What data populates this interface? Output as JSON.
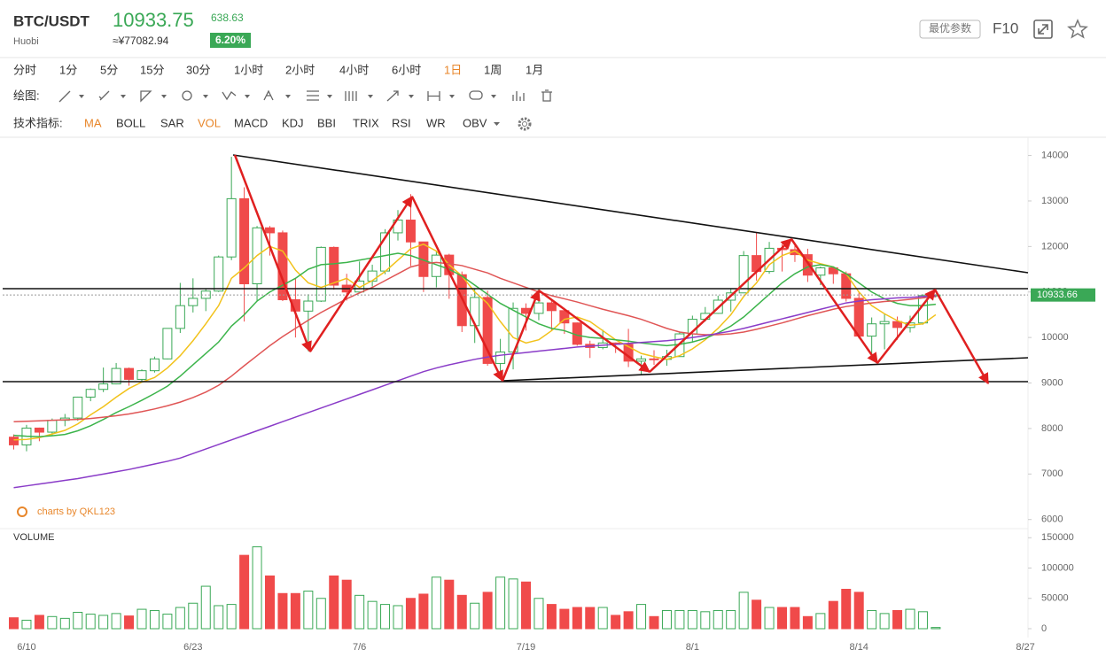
{
  "header": {
    "symbol": "BTC/USDT",
    "exchange": "Huobi",
    "price": 10933.75,
    "cny": "≈¥77082.94",
    "change": 638.63,
    "change_pct": "6.20%",
    "param_button": "最优参数",
    "f10": "F10"
  },
  "toolbar": {
    "periods": [
      "分时",
      "1分",
      "5分",
      "15分",
      "30分",
      "1小时",
      "2小时",
      "4小时",
      "6小时",
      "1日",
      "1周",
      "1月"
    ],
    "active_period": 9,
    "draw_label": "绘图:",
    "indicator_label": "技术指标:",
    "indicators": [
      "MA",
      "BOLL",
      "SAR",
      "VOL",
      "MACD",
      "KDJ",
      "BBI",
      "TRIX",
      "RSI",
      "WR",
      "OBV"
    ],
    "active_indicators": [
      0,
      3
    ]
  },
  "watermark": "charts by QKL123",
  "chart_data": [
    {
      "type": "candlestick",
      "up_color": "#3aa856",
      "down_color": "#f04a4a",
      "categories": [
        null,
        "6/10",
        null,
        null,
        null,
        null,
        null,
        null,
        null,
        null,
        null,
        null,
        null,
        null,
        "6/23",
        null,
        null,
        null,
        null,
        null,
        null,
        null,
        null,
        null,
        null,
        null,
        null,
        "7/6",
        null,
        null,
        null,
        null,
        null,
        null,
        null,
        null,
        null,
        null,
        null,
        null,
        "7/19",
        null,
        null,
        null,
        null,
        null,
        null,
        null,
        null,
        null,
        null,
        null,
        null,
        "8/1",
        null,
        null,
        null,
        null,
        null,
        null,
        null,
        null,
        null,
        null,
        null,
        null,
        "8/14",
        null,
        null,
        null,
        null,
        null,
        null,
        null,
        null,
        null,
        null,
        null,
        null,
        "8/27"
      ],
      "open": [
        7810,
        7640,
        8010,
        7920,
        8180,
        8230,
        8690,
        8860,
        8980,
        9320,
        9080,
        9270,
        9530,
        10200,
        10700,
        10860,
        11020,
        11770,
        13050,
        11180,
        12410,
        12300,
        10830,
        10580,
        10800,
        11980,
        11150,
        11000,
        11240,
        11460,
        12300,
        12580,
        12100,
        11340,
        11810,
        11380,
        10260,
        10880,
        9430,
        9680,
        10640,
        10530,
        10760,
        10590,
        10320,
        9850,
        9780,
        9880,
        9850,
        9480,
        9530,
        9520,
        9580,
        10080,
        10400,
        10530,
        10820,
        10980,
        11800,
        11450,
        11960,
        11930,
        11820,
        11370,
        11530,
        11400,
        10860,
        10030,
        10300,
        10350,
        10220,
        10320,
        10920,
        null,
        null,
        null,
        null,
        null,
        null,
        null
      ],
      "high": [
        7870,
        8080,
        8020,
        8220,
        8320,
        8700,
        8880,
        9340,
        9440,
        9340,
        9300,
        9580,
        10200,
        11200,
        11300,
        11080,
        11800,
        13970,
        13300,
        12450,
        12450,
        12350,
        11300,
        10950,
        12000,
        12000,
        11400,
        11670,
        11600,
        12380,
        12800,
        13150,
        12100,
        11900,
        11840,
        11450,
        11080,
        11030,
        9970,
        10770,
        10750,
        11080,
        10820,
        10650,
        10330,
        9930,
        10170,
        9890,
        10190,
        9600,
        9720,
        9730,
        10120,
        10480,
        10670,
        10920,
        11070,
        11900,
        12300,
        12100,
        12050,
        12050,
        11950,
        11560,
        11540,
        11450,
        10990,
        10440,
        10530,
        10460,
        10480,
        10950,
        10950,
        null,
        null,
        null,
        null,
        null,
        null,
        null
      ],
      "low": [
        7540,
        7500,
        7720,
        7840,
        8050,
        8170,
        8600,
        8800,
        8970,
        8940,
        9040,
        9230,
        9520,
        10100,
        10550,
        10580,
        11000,
        11700,
        10350,
        10800,
        11800,
        10800,
        10000,
        9700,
        10780,
        11050,
        10810,
        10980,
        11120,
        11390,
        12130,
        11570,
        11000,
        11100,
        10850,
        10120,
        9880,
        9380,
        9100,
        9300,
        10150,
        10380,
        10150,
        10080,
        9820,
        9550,
        9740,
        9660,
        9350,
        9170,
        9400,
        9380,
        9580,
        9890,
        10350,
        10520,
        10570,
        10980,
        11250,
        11400,
        11450,
        11660,
        11220,
        11150,
        11180,
        10790,
        9980,
        9500,
        9740,
        9950,
        10110,
        10280,
        10880,
        null,
        null,
        null,
        null,
        null,
        null,
        null
      ],
      "close": [
        7640,
        8010,
        7920,
        8180,
        8230,
        8690,
        8860,
        8980,
        9320,
        9080,
        9270,
        9530,
        10200,
        10700,
        10860,
        11020,
        11770,
        13050,
        11180,
        12410,
        12300,
        10830,
        10580,
        10800,
        11980,
        11150,
        11000,
        11240,
        11460,
        12300,
        12580,
        12100,
        11340,
        11810,
        11380,
        10260,
        10880,
        9430,
        9680,
        10640,
        10530,
        10760,
        10590,
        10320,
        9850,
        9780,
        9880,
        9850,
        9480,
        9530,
        9520,
        9580,
        10080,
        10400,
        10530,
        10820,
        10980,
        11800,
        11450,
        11960,
        11930,
        11820,
        11370,
        11530,
        11400,
        10860,
        10030,
        10300,
        10350,
        10220,
        10320,
        10920,
        10933.66,
        null,
        null,
        null,
        null,
        null,
        null,
        null
      ],
      "series": [
        {
          "color": "#f2c21b",
          "values": [
            7750,
            7760,
            7800,
            7880,
            7960,
            8100,
            8300,
            8480,
            8690,
            8880,
            9020,
            9120,
            9330,
            9600,
            9930,
            10300,
            10700,
            11300,
            11530,
            11800,
            12000,
            11900,
            11480,
            11200,
            11100,
            11200,
            11300,
            11100,
            11250,
            11450,
            11700,
            11950,
            12050,
            11900,
            11600,
            11350,
            11000,
            10750,
            10350,
            10000,
            9880,
            9950,
            10150,
            10400,
            10450,
            10350,
            10150,
            9950,
            9800,
            9650,
            9580,
            9520,
            9600,
            9750,
            9950,
            10200,
            10500,
            10900,
            11200,
            11600,
            11800,
            11900,
            11700,
            11620,
            11550,
            11400,
            11000,
            10700,
            10520,
            10370,
            10270,
            10300,
            10500,
            null,
            null,
            null,
            null,
            null,
            null,
            null
          ]
        },
        {
          "color": "#3cb44b",
          "values": [
            7850,
            7830,
            7820,
            7840,
            7870,
            7950,
            8060,
            8200,
            8350,
            8480,
            8620,
            8770,
            8930,
            9150,
            9400,
            9650,
            9900,
            10250,
            10500,
            10800,
            11000,
            11150,
            11300,
            11500,
            11600,
            11620,
            11650,
            11700,
            11750,
            11800,
            11850,
            11800,
            11700,
            11600,
            11500,
            11350,
            11150,
            10950,
            10750,
            10600,
            10450,
            10300,
            10200,
            10150,
            10050,
            10000,
            9980,
            9950,
            9920,
            9880,
            9850,
            9820,
            9850,
            9900,
            9980,
            10100,
            10250,
            10450,
            10700,
            10950,
            11200,
            11400,
            11550,
            11600,
            11550,
            11400,
            11200,
            11000,
            10850,
            10750,
            10700,
            10700,
            10730,
            null,
            null,
            null,
            null,
            null,
            null,
            null
          ]
        },
        {
          "color": "#e05555",
          "values": [
            8150,
            8160,
            8170,
            8180,
            8190,
            8200,
            8220,
            8250,
            8280,
            8320,
            8370,
            8430,
            8500,
            8580,
            8680,
            8800,
            8950,
            9150,
            9380,
            9600,
            9820,
            10020,
            10200,
            10380,
            10550,
            10700,
            10850,
            10980,
            11100,
            11250,
            11400,
            11550,
            11620,
            11650,
            11620,
            11580,
            11500,
            11420,
            11300,
            11200,
            11100,
            11000,
            10920,
            10850,
            10780,
            10700,
            10620,
            10550,
            10480,
            10400,
            10300,
            10200,
            10120,
            10080,
            10060,
            10060,
            10080,
            10120,
            10180,
            10250,
            10320,
            10400,
            10480,
            10550,
            10620,
            10680,
            10720,
            10760,
            10790,
            10810,
            10840,
            10870,
            10900,
            null,
            null,
            null,
            null,
            null,
            null,
            null
          ]
        },
        {
          "color": "#8a3cc8",
          "values": [
            6700,
            6740,
            6780,
            6820,
            6860,
            6900,
            6950,
            7000,
            7050,
            7100,
            7160,
            7220,
            7280,
            7350,
            7450,
            7550,
            7650,
            7750,
            7850,
            7950,
            8050,
            8150,
            8250,
            8350,
            8450,
            8550,
            8650,
            8750,
            8850,
            8950,
            9050,
            9150,
            9250,
            9330,
            9400,
            9460,
            9520,
            9570,
            9610,
            9640,
            9670,
            9700,
            9730,
            9760,
            9790,
            9810,
            9830,
            9850,
            9870,
            9890,
            9910,
            9930,
            9960,
            10000,
            10040,
            10090,
            10140,
            10200,
            10270,
            10340,
            10410,
            10480,
            10550,
            10620,
            10690,
            10760,
            10800,
            10830,
            10850,
            10870,
            10880,
            10900,
            10920,
            null,
            null,
            null,
            null,
            null,
            null,
            null
          ]
        }
      ],
      "ylim": [
        5800,
        14400
      ],
      "yticks": [
        6000,
        7000,
        8000,
        9000,
        10000,
        11000,
        12000,
        13000,
        14000
      ],
      "grid": false
    },
    {
      "type": "bar",
      "title": "VOLUME",
      "values": [
        18000,
        14000,
        22000,
        20000,
        17000,
        27000,
        24000,
        22000,
        25000,
        21000,
        32000,
        30000,
        24000,
        35000,
        42000,
        70000,
        38000,
        40000,
        121000,
        135000,
        87000,
        58000,
        58000,
        62000,
        50000,
        87000,
        80000,
        55000,
        45000,
        40000,
        38000,
        50000,
        57000,
        85000,
        80000,
        55000,
        42000,
        60000,
        85000,
        82000,
        77000,
        50000,
        40000,
        32000,
        35000,
        35000,
        35000,
        22000,
        28000,
        40000,
        20000,
        30000,
        30000,
        30000,
        28000,
        30000,
        30000,
        60000,
        47000,
        35000,
        35000,
        35000,
        20000,
        25000,
        45000,
        65000,
        60000,
        30000,
        25000,
        30000,
        32000,
        28000,
        2000,
        null,
        null,
        null,
        null,
        null,
        null,
        null
      ],
      "ylim": [
        0,
        165000
      ],
      "yticks": [
        0,
        50000,
        100000,
        150000
      ]
    }
  ]
}
